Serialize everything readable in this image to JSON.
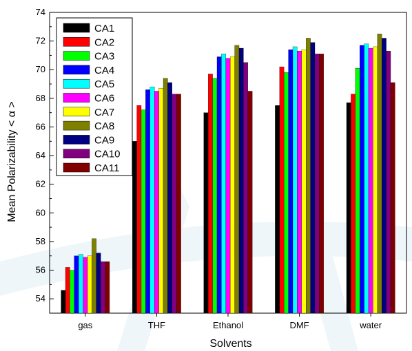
{
  "chart_data": {
    "type": "bar",
    "xlabel": "Solvents",
    "ylabel": "Mean Polarizability < α >",
    "ylim": [
      53,
      74
    ],
    "y_ticks": [
      54,
      56,
      58,
      60,
      62,
      64,
      66,
      68,
      70,
      72,
      74
    ],
    "categories": [
      "gas",
      "THF",
      "Ethanol",
      "DMF",
      "water"
    ],
    "legend_position": "top-left",
    "grid": false,
    "series": [
      {
        "name": "CA1",
        "color": "#000000",
        "values": [
          54.6,
          65.0,
          67.0,
          67.5,
          67.7
        ]
      },
      {
        "name": "CA2",
        "color": "#ff0000",
        "values": [
          56.2,
          67.5,
          69.7,
          70.2,
          68.3
        ]
      },
      {
        "name": "CA3",
        "color": "#00ff00",
        "values": [
          56.0,
          67.2,
          69.4,
          69.8,
          70.1
        ]
      },
      {
        "name": "CA4",
        "color": "#0000ff",
        "values": [
          57.0,
          68.6,
          70.9,
          71.4,
          71.7
        ]
      },
      {
        "name": "CA5",
        "color": "#00ffff",
        "values": [
          57.1,
          68.8,
          71.1,
          71.6,
          71.8
        ]
      },
      {
        "name": "CA6",
        "color": "#ff00ff",
        "values": [
          56.9,
          68.5,
          70.8,
          71.3,
          71.5
        ]
      },
      {
        "name": "CA7",
        "color": "#ffff00",
        "values": [
          57.0,
          68.7,
          70.9,
          71.4,
          71.6
        ]
      },
      {
        "name": "CA8",
        "color": "#808000",
        "values": [
          58.2,
          69.4,
          71.7,
          72.2,
          72.5
        ]
      },
      {
        "name": "CA9",
        "color": "#000080",
        "values": [
          57.2,
          69.1,
          71.5,
          71.9,
          72.2
        ]
      },
      {
        "name": "CA10",
        "color": "#800080",
        "values": [
          56.6,
          68.3,
          70.5,
          71.1,
          71.3
        ]
      },
      {
        "name": "CA11",
        "color": "#800000",
        "values": [
          56.6,
          68.3,
          68.5,
          71.1,
          69.1
        ]
      }
    ]
  }
}
